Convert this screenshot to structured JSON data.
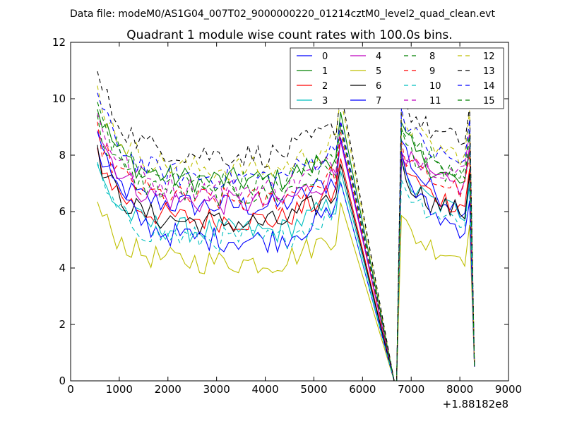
{
  "suptitle": "Data file: modeM0/AS1G04_007T02_9000000220_01214cztM0_level2_quad_clean.evt",
  "chart_data": {
    "type": "line",
    "title": "Quadrant 1 module wise count rates with 100.0s bins.",
    "xlabel": "",
    "ylabel": "",
    "x_offset_label": "+1.88182e8",
    "xlim": [
      0,
      9000
    ],
    "ylim": [
      0,
      12
    ],
    "xticks": [
      0,
      1000,
      2000,
      3000,
      4000,
      5000,
      6000,
      7000,
      8000,
      9000
    ],
    "xtick_labels": [
      "0",
      "1000",
      "2000",
      "3000",
      "4000",
      "5000",
      "6000",
      "7000",
      "8000",
      "9000"
    ],
    "yticks": [
      0,
      2,
      4,
      6,
      8,
      10,
      12
    ],
    "ytick_labels": [
      "0",
      "2",
      "4",
      "6",
      "8",
      "10",
      "12"
    ],
    "legend_position": "top-right",
    "legend_columns": 4,
    "grid": false,
    "x": [
      {
        "segment": 1,
        "start": 550,
        "step": 100,
        "count": 51
      },
      {
        "segment": 2,
        "start": 6700,
        "step": 100,
        "count": 17
      }
    ],
    "series": [
      {
        "name": "0",
        "color": "#0000ff",
        "dashed": false,
        "level1": 6.2,
        "level2": 6.9,
        "start": 8.1,
        "peak2": 8.6,
        "end": 5.3
      },
      {
        "name": "1",
        "color": "#008000",
        "dashed": false,
        "level1": 7.1,
        "level2": 7.8,
        "start": 9.7,
        "peak2": 8.9,
        "end": 6.1
      },
      {
        "name": "2",
        "color": "#ff0000",
        "dashed": false,
        "level1": 5.7,
        "level2": 6.6,
        "start": 8.1,
        "peak2": 7.9,
        "end": 5.8
      },
      {
        "name": "3",
        "color": "#00bfbf",
        "dashed": false,
        "level1": 5.3,
        "level2": 6.5,
        "start": 7.5,
        "peak2": 7.4,
        "end": 5.4
      },
      {
        "name": "4",
        "color": "#bf00bf",
        "dashed": false,
        "level1": 6.3,
        "level2": 7.1,
        "start": 9.1,
        "peak2": 8.3,
        "end": 6.6
      },
      {
        "name": "5",
        "color": "#bfbf00",
        "dashed": false,
        "level1": 4.2,
        "level2": 4.8,
        "start": 6.2,
        "peak2": 5.7,
        "end": 4.0
      },
      {
        "name": "6",
        "color": "#000000",
        "dashed": false,
        "level1": 5.6,
        "level2": 6.3,
        "start": 8.0,
        "peak2": 7.6,
        "end": 5.6
      },
      {
        "name": "7",
        "color": "#0000ff",
        "dashed": false,
        "level1": 5.0,
        "level2": 6.0,
        "start": 9.1,
        "peak2": 7.9,
        "end": 4.7
      },
      {
        "name": "8",
        "color": "#008000",
        "dashed": true,
        "level1": 6.6,
        "level2": 7.5,
        "start": 9.1,
        "peak2": 8.7,
        "end": 6.8
      },
      {
        "name": "9",
        "color": "#ff0000",
        "dashed": true,
        "level1": 6.4,
        "level2": 7.2,
        "start": 8.8,
        "peak2": 8.2,
        "end": 6.3
      },
      {
        "name": "10",
        "color": "#00bfbf",
        "dashed": true,
        "level1": 5.0,
        "level2": 6.1,
        "start": 7.4,
        "peak2": 7.1,
        "end": 5.2
      },
      {
        "name": "11",
        "color": "#bf00bf",
        "dashed": true,
        "level1": 6.8,
        "level2": 7.7,
        "start": 9.4,
        "peak2": 8.4,
        "end": 7.0
      },
      {
        "name": "12",
        "color": "#bfbf00",
        "dashed": true,
        "level1": 7.5,
        "level2": 8.3,
        "start": 10.3,
        "peak2": 9.6,
        "end": 7.6
      },
      {
        "name": "13",
        "color": "#000000",
        "dashed": true,
        "level1": 8.0,
        "level2": 8.9,
        "start": 10.9,
        "peak2": 10.1,
        "end": 8.0
      },
      {
        "name": "14",
        "color": "#0000ff",
        "dashed": true,
        "level1": 7.2,
        "level2": 8.1,
        "start": 10.1,
        "peak2": 9.6,
        "end": 7.3
      },
      {
        "name": "15",
        "color": "#008000",
        "dashed": true,
        "level1": 7.0,
        "level2": 7.9,
        "start": 9.8,
        "peak2": 9.2,
        "end": 7.1
      }
    ]
  }
}
